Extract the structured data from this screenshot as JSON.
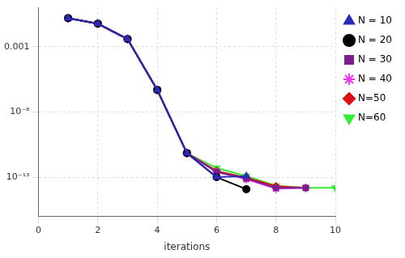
{
  "chart_data": {
    "type": "line",
    "x_label": "iterations",
    "x": [
      1,
      2,
      3,
      4,
      5,
      6,
      7,
      8,
      9,
      10
    ],
    "xlim": [
      0,
      10
    ],
    "xticks": [
      0,
      2,
      4,
      6,
      8,
      10
    ],
    "ylim": [
      1e-16,
      1
    ],
    "yticks": [
      0.001,
      {
        "value": 1e-08,
        "label": "10⁻⁸"
      },
      {
        "value": 1e-13,
        "label": "10⁻¹³"
      }
    ],
    "log": "y",
    "grid": true,
    "legend": "right",
    "series": [
      {
        "name": "N = 10",
        "color": "#2b2bb8",
        "marker": "triangle",
        "values": [
          0.16,
          0.06,
          0.004,
          5e-07,
          7e-12,
          1e-13,
          1.2e-13,
          null,
          null,
          null
        ]
      },
      {
        "name": "N = 20",
        "color": "#000000",
        "marker": "circle",
        "values": [
          0.16,
          0.06,
          0.004,
          5e-07,
          7e-12,
          1e-13,
          1.2e-14,
          null,
          null,
          null
        ]
      },
      {
        "name": "N = 30",
        "color": "#7a1f8a",
        "marker": "square",
        "values": [
          0.16,
          0.06,
          0.004,
          5e-07,
          7e-12,
          2.5e-13,
          8e-14,
          1.5e-14,
          1.5e-14,
          null
        ]
      },
      {
        "name": "N = 40",
        "color": "#ee33ee",
        "marker": "star",
        "values": [
          0.16,
          0.06,
          0.004,
          5e-07,
          7e-12,
          2.5e-13,
          7e-14,
          1.3e-14,
          1.5e-14,
          null
        ]
      },
      {
        "name": "N=50",
        "color": "#dd1111",
        "marker": "diamond",
        "values": [
          0.16,
          0.06,
          0.004,
          5e-07,
          7e-12,
          3e-13,
          9e-14,
          2e-14,
          1.5e-14,
          null
        ]
      },
      {
        "name": "N=60",
        "color": "#33ee33",
        "marker": "triangle-down",
        "values": [
          0.16,
          0.06,
          0.004,
          5e-07,
          7e-12,
          5e-13,
          1.2e-13,
          2.2e-14,
          1.5e-14,
          1.5e-14
        ]
      }
    ]
  }
}
